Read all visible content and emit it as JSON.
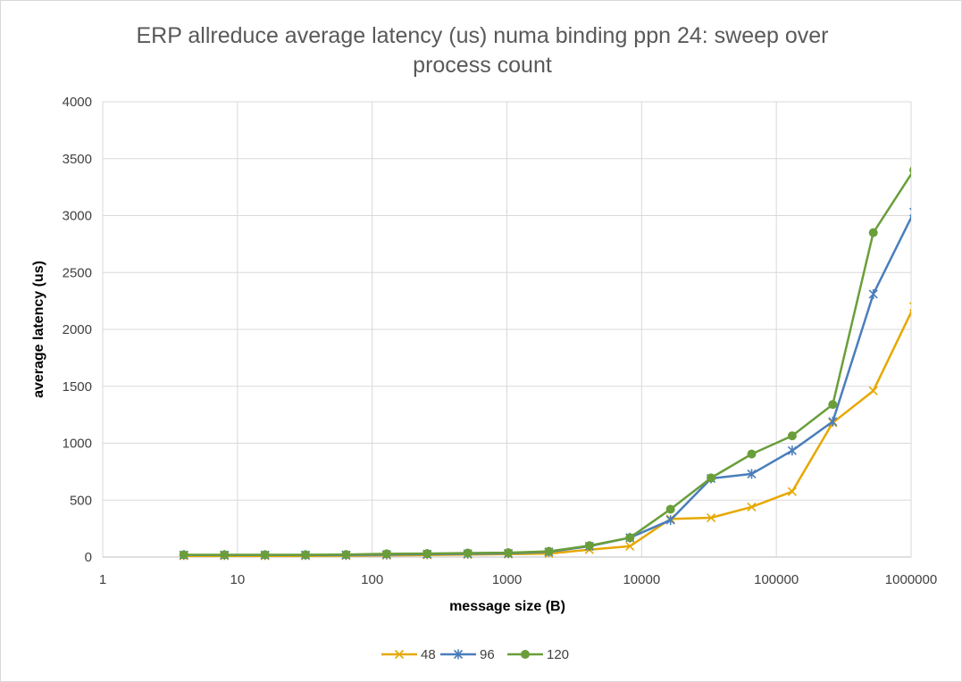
{
  "chart_data": {
    "type": "line",
    "title": "ERP allreduce average latency (us) numa binding ppn 24: sweep over process count",
    "title_lines": [
      "ERP allreduce average latency (us) numa binding ppn 24: sweep over",
      "process count"
    ],
    "xlabel": "message size (B)",
    "ylabel": "average latency (us)",
    "x_scale": "log10",
    "xlim": [
      1,
      1000000
    ],
    "ylim": [
      0,
      4000
    ],
    "x_ticks": [
      1,
      10,
      100,
      1000,
      10000,
      100000,
      1000000
    ],
    "x_tick_labels": [
      "1",
      "10",
      "100",
      "1000",
      "10000",
      "100000",
      "1000000"
    ],
    "y_ticks": [
      0,
      500,
      1000,
      1500,
      2000,
      2500,
      3000,
      3500,
      4000
    ],
    "y_tick_labels": [
      "0",
      "500",
      "1000",
      "1500",
      "2000",
      "2500",
      "3000",
      "3500",
      "4000"
    ],
    "grid": true,
    "legend_position": "bottom",
    "x": [
      4,
      8,
      16,
      32,
      64,
      128,
      256,
      512,
      1024,
      2048,
      4096,
      8192,
      16384,
      32768,
      65536,
      131072,
      262144,
      524288,
      1048576
    ],
    "series": [
      {
        "name": "48",
        "color": "#E6A800",
        "marker": "x",
        "values": [
          10,
          10,
          10,
          10,
          12,
          15,
          18,
          22,
          25,
          30,
          65,
          95,
          335,
          345,
          440,
          575,
          1180,
          1460,
          2200
        ]
      },
      {
        "name": "96",
        "color": "#4A7EBB",
        "marker": "star",
        "values": [
          18,
          18,
          18,
          18,
          18,
          22,
          25,
          28,
          32,
          45,
          95,
          170,
          325,
          690,
          730,
          935,
          1190,
          2310,
          3030
        ]
      },
      {
        "name": "120",
        "color": "#6A9E3A",
        "marker": "circle",
        "values": [
          20,
          20,
          20,
          20,
          22,
          28,
          30,
          35,
          38,
          50,
          100,
          170,
          420,
          695,
          905,
          1065,
          1340,
          2850,
          3400
        ]
      }
    ]
  }
}
